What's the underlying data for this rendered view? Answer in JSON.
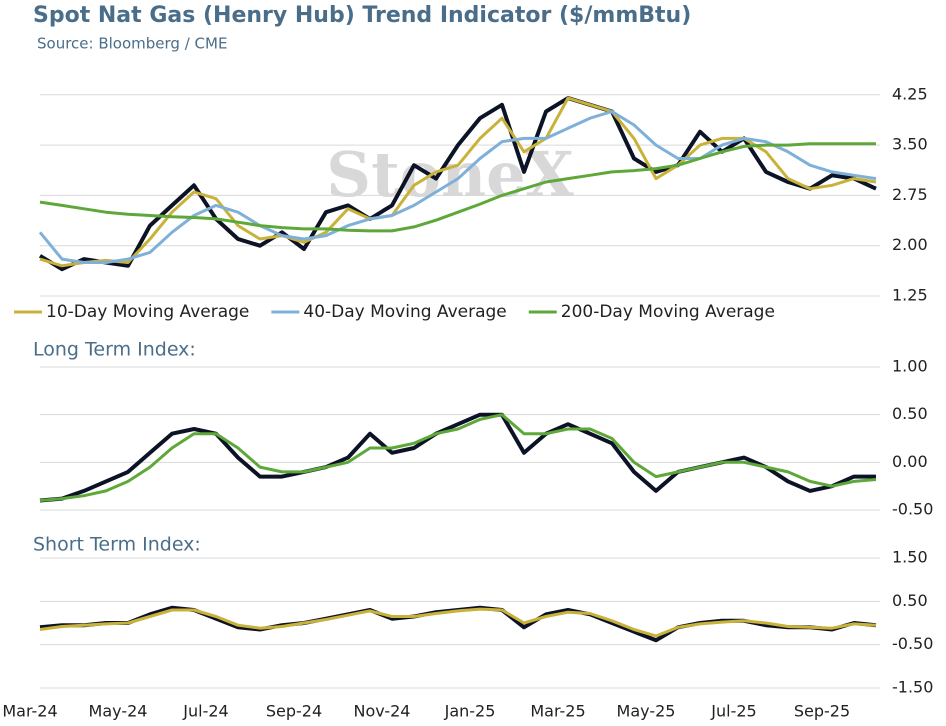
{
  "chart_data": [
    {
      "type": "line",
      "title": "Spot Nat Gas (Henry Hub) Trend Indicator ($/mmBtu)",
      "subtitle": "Source: Bloomberg / CME",
      "watermark": "StoneX",
      "ylim": [
        1.25,
        4.5
      ],
      "yticks": [
        4.25,
        {
          "value": 3.5,
          "label": "3.50"
        },
        2.75,
        {
          "value": 2.0,
          "label": "2.00"
        },
        1.25
      ],
      "grid": true,
      "series": [
        {
          "color": "#0d1326",
          "values": [
            1.85,
            1.65,
            1.8,
            1.75,
            1.7,
            2.3,
            2.6,
            2.9,
            2.4,
            2.1,
            2.0,
            2.2,
            1.95,
            2.5,
            2.6,
            2.4,
            2.6,
            3.2,
            3.0,
            3.5,
            3.9,
            4.1,
            3.1,
            4.0,
            4.2,
            4.1,
            4.0,
            3.3,
            3.1,
            3.2,
            3.7,
            3.4,
            3.6,
            3.1,
            2.95,
            2.85,
            3.05,
            3.0,
            2.85
          ]
        },
        {
          "name": "10-Day Moving Average",
          "color": "#c8b23a",
          "values": [
            1.8,
            1.7,
            1.75,
            1.78,
            1.75,
            2.1,
            2.5,
            2.8,
            2.7,
            2.3,
            2.1,
            2.15,
            2.05,
            2.2,
            2.55,
            2.4,
            2.45,
            2.9,
            3.1,
            3.2,
            3.6,
            3.9,
            3.4,
            3.6,
            4.2,
            4.1,
            4.0,
            3.6,
            3.0,
            3.2,
            3.5,
            3.6,
            3.6,
            3.4,
            3.0,
            2.85,
            2.9,
            3.0,
            2.95
          ]
        },
        {
          "name": "40-Day Moving Average",
          "color": "#7fb0d9",
          "values": [
            2.2,
            1.8,
            1.75,
            1.75,
            1.8,
            1.9,
            2.2,
            2.45,
            2.6,
            2.5,
            2.3,
            2.15,
            2.1,
            2.15,
            2.3,
            2.4,
            2.45,
            2.6,
            2.8,
            3.0,
            3.3,
            3.55,
            3.6,
            3.6,
            3.75,
            3.9,
            4.0,
            3.8,
            3.5,
            3.3,
            3.3,
            3.5,
            3.6,
            3.55,
            3.4,
            3.2,
            3.1,
            3.05,
            3.0
          ]
        },
        {
          "name": "200-Day Moving Average",
          "color": "#5ea83a",
          "values": [
            2.65,
            2.6,
            2.55,
            2.5,
            2.47,
            2.45,
            2.43,
            2.42,
            2.4,
            2.35,
            2.3,
            2.27,
            2.25,
            2.25,
            2.23,
            2.22,
            2.22,
            2.28,
            2.38,
            2.5,
            2.62,
            2.75,
            2.85,
            2.95,
            3.0,
            3.05,
            3.1,
            3.12,
            3.15,
            3.2,
            3.3,
            3.4,
            3.48,
            3.5,
            3.5,
            3.52,
            3.52,
            3.52,
            3.52
          ]
        }
      ]
    },
    {
      "type": "line",
      "title": "Long Term Index:",
      "ylim": [
        -0.5,
        1.0
      ],
      "yticks": [
        {
          "value": 1.0,
          "label": "1.00"
        },
        {
          "value": 0.5,
          "label": "0.50"
        },
        {
          "value": 0,
          "label": "0.00"
        },
        {
          "value": -0.5,
          "label": "-0.50"
        }
      ],
      "grid": true,
      "series": [
        {
          "color": "#0d1326",
          "values": [
            -0.4,
            -0.38,
            -0.3,
            -0.2,
            -0.1,
            0.1,
            0.3,
            0.35,
            0.3,
            0.05,
            -0.15,
            -0.15,
            -0.1,
            -0.05,
            0.05,
            0.3,
            0.1,
            0.15,
            0.3,
            0.4,
            0.5,
            0.5,
            0.1,
            0.3,
            0.4,
            0.3,
            0.2,
            -0.1,
            -0.3,
            -0.1,
            -0.05,
            0.0,
            0.05,
            -0.05,
            -0.2,
            -0.3,
            -0.25,
            -0.15,
            -0.15
          ]
        },
        {
          "color": "#5ea83a",
          "values": [
            -0.4,
            -0.38,
            -0.35,
            -0.3,
            -0.2,
            -0.05,
            0.15,
            0.3,
            0.3,
            0.15,
            -0.05,
            -0.1,
            -0.1,
            -0.05,
            0.0,
            0.15,
            0.15,
            0.2,
            0.3,
            0.35,
            0.45,
            0.5,
            0.3,
            0.3,
            0.35,
            0.35,
            0.25,
            0.0,
            -0.15,
            -0.1,
            -0.05,
            0.0,
            0.0,
            -0.05,
            -0.1,
            -0.2,
            -0.25,
            -0.2,
            -0.18
          ]
        }
      ]
    },
    {
      "type": "line",
      "title": "Short Term Index:",
      "categories": [
        "Mar-24",
        null,
        null,
        null,
        "May-24",
        null,
        null,
        null,
        "Jul-24",
        null,
        null,
        null,
        "Sep-24",
        null,
        null,
        null,
        "Nov-24",
        null,
        null,
        null,
        "Jan-25",
        null,
        null,
        null,
        "Mar-25",
        null,
        null,
        null,
        "May-25",
        null,
        null,
        null,
        "Jul-25",
        null,
        null,
        null,
        "Sep-25",
        null,
        null
      ],
      "ylim": [
        -1.5,
        1.5
      ],
      "yticks": [
        {
          "value": 1.5,
          "label": "1.50"
        },
        {
          "value": 0.5,
          "label": "0.50"
        },
        {
          "value": -0.5,
          "label": "-0.50"
        },
        {
          "value": -1.5,
          "label": "-1.50"
        }
      ],
      "grid": true,
      "series": [
        {
          "color": "#0d1326",
          "values": [
            -0.1,
            -0.05,
            -0.05,
            0.0,
            0.0,
            0.2,
            0.35,
            0.3,
            0.1,
            -0.1,
            -0.15,
            -0.05,
            0.0,
            0.1,
            0.2,
            0.3,
            0.1,
            0.15,
            0.25,
            0.3,
            0.35,
            0.3,
            -0.1,
            0.2,
            0.3,
            0.2,
            0.0,
            -0.2,
            -0.4,
            -0.1,
            0.0,
            0.05,
            0.05,
            -0.05,
            -0.1,
            -0.1,
            -0.15,
            0.0,
            -0.05
          ]
        },
        {
          "color": "#c8b23a",
          "values": [
            -0.15,
            -0.08,
            -0.05,
            -0.02,
            0.0,
            0.15,
            0.3,
            0.3,
            0.15,
            -0.05,
            -0.12,
            -0.08,
            0.0,
            0.08,
            0.18,
            0.28,
            0.15,
            0.15,
            0.22,
            0.28,
            0.32,
            0.3,
            0.0,
            0.15,
            0.25,
            0.22,
            0.05,
            -0.15,
            -0.3,
            -0.1,
            -0.02,
            0.02,
            0.05,
            0.0,
            -0.08,
            -0.1,
            -0.12,
            -0.02,
            -0.05
          ]
        }
      ]
    }
  ]
}
